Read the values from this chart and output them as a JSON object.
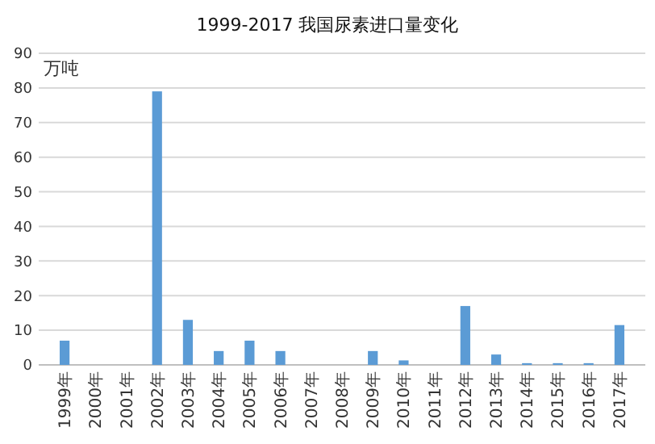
{
  "chart_data": {
    "type": "bar",
    "title": "1999-2017 我国尿素进口量变化",
    "ylabel": "万吨",
    "categories": [
      "1999年",
      "2000年",
      "2001年",
      "2002年",
      "2003年",
      "2004年",
      "2005年",
      "2006年",
      "2007年",
      "2008年",
      "2009年",
      "2010年",
      "2011年",
      "2012年",
      "2013年",
      "2014年",
      "2015年",
      "2016年",
      "2017年"
    ],
    "values": [
      7,
      0,
      0,
      79,
      13,
      4,
      7,
      4,
      0,
      0,
      4,
      1.3,
      0,
      17,
      3,
      0.5,
      0.5,
      0.5,
      11.5
    ],
    "color": "#5b9bd5",
    "ylim": [
      0,
      90
    ],
    "yticks": [
      0,
      10,
      20,
      30,
      40,
      50,
      60,
      70,
      80,
      90
    ],
    "grid": "y"
  }
}
